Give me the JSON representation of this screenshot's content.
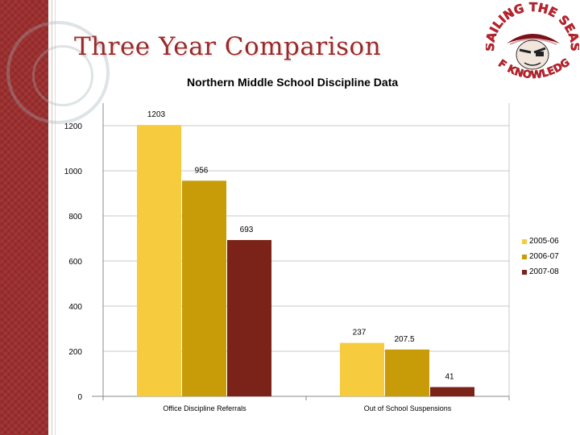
{
  "slide": {
    "title": "Three Year Comparison"
  },
  "logo": {
    "top_text": "SAILING THE SEAS",
    "bottom_text": "OF KNOWLEDGE"
  },
  "colors": {
    "strip": "#9c2e2e",
    "title": "#9a2a2a",
    "series": [
      "#f6cc3e",
      "#c89b08",
      "#7b2318"
    ]
  },
  "chart_data": {
    "type": "bar",
    "title": "Northern Middle School Discipline Data",
    "categories": [
      "Office Discipline Referrals",
      "Out of School Suspensions"
    ],
    "series": [
      {
        "name": "2005-06",
        "values": [
          1203,
          237
        ],
        "labels": [
          "1203",
          "237"
        ]
      },
      {
        "name": "2006-07",
        "values": [
          956,
          207.5
        ],
        "labels": [
          "956",
          "207.5"
        ]
      },
      {
        "name": "2007-08",
        "values": [
          693,
          41
        ],
        "labels": [
          "693",
          "41"
        ]
      }
    ],
    "yticks": [
      "0",
      "200",
      "400",
      "600",
      "800",
      "1000",
      "1200"
    ],
    "ylim": [
      0,
      1300
    ],
    "grid": true,
    "legend": "right"
  }
}
